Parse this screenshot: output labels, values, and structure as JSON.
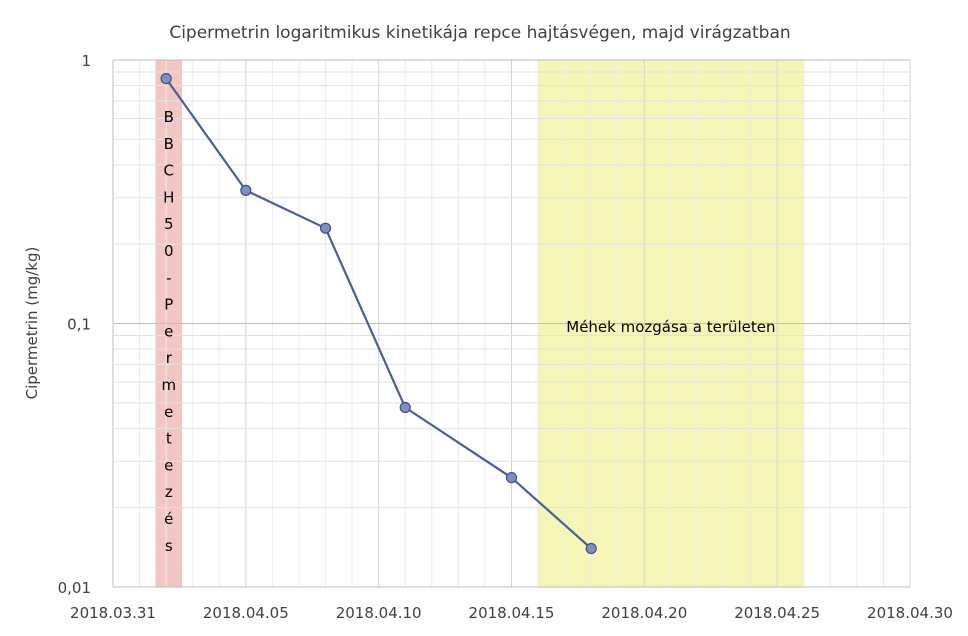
{
  "chart_data": {
    "type": "line",
    "title": "Cipermetrin logaritmikus kinetikája repce hajtásvégen, majd virágzatban",
    "xlabel": "",
    "ylabel": "Cipermetrin (mg/kg)",
    "y_scale": "log",
    "ylim": [
      0.01,
      1
    ],
    "xlim": [
      "2018-03-31",
      "2018-04-30"
    ],
    "x_tick_labels": [
      "2018.03.31",
      "2018.04.05",
      "2018.04.10",
      "2018.04.15",
      "2018.04.20",
      "2018.04.25",
      "2018.04.30"
    ],
    "y_tick_labels": [
      "1",
      "0,1",
      "0,01"
    ],
    "grid": true,
    "series": [
      {
        "x": [
          "2018-04-02",
          "2018-04-05",
          "2018-04-08",
          "2018-04-11",
          "2018-04-15",
          "2018-04-18"
        ],
        "y": [
          0.85,
          0.32,
          0.23,
          0.048,
          0.026,
          0.014
        ],
        "color": "#4a5f9a"
      }
    ],
    "regions": [
      {
        "from": "2018-04-01.6",
        "to": "2018-04-02.6",
        "color": "#f2c6c2",
        "label": "BBCH50-Permetezés",
        "label_chars": [
          "B",
          "B",
          "C",
          "H",
          "5",
          "0",
          "-",
          "P",
          "e",
          "r",
          "m",
          "e",
          "t",
          "e",
          "z",
          "é",
          "s"
        ]
      },
      {
        "from": "2018-04-16.0",
        "to": "2018-04-26.0",
        "color": "#f5f5b8",
        "label": "Méhek mozgása a területen"
      }
    ]
  }
}
